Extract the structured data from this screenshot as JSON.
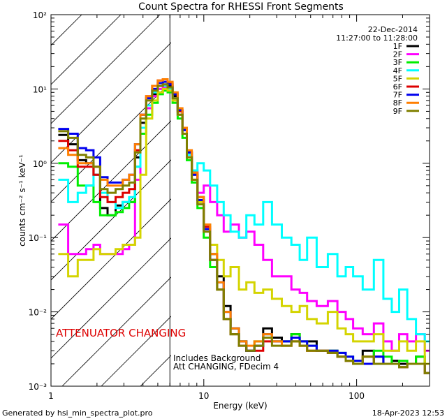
{
  "chart_data": {
    "type": "line",
    "title": "Count Spectra for RHESSI Front Segments",
    "xlabel": "Energy (keV)",
    "ylabel": "counts cm⁻² s⁻¹ keV⁻¹",
    "xscale": "log",
    "yscale": "log",
    "xlim": [
      1,
      300
    ],
    "ylim": [
      0.001,
      100
    ],
    "x_ticks": [
      {
        "value": 1,
        "label": "1"
      },
      {
        "value": 10,
        "label": "10"
      },
      {
        "value": 100,
        "label": "100"
      }
    ],
    "y_ticks": [
      {
        "value": 100,
        "label": "10²"
      },
      {
        "value": 10,
        "label": "10¹"
      },
      {
        "value": 1,
        "label": "10⁰"
      },
      {
        "value": 0.1,
        "label": "10⁻¹"
      },
      {
        "value": 0.01,
        "label": "10⁻²"
      },
      {
        "value": 0.001,
        "label": "10⁻³"
      }
    ],
    "date": "22-Dec-2014",
    "time_range": "11:27:00 to 11:28:00",
    "attenuator_label": "ATTENUATOR CHANGING",
    "attenuator_energy_kev": 6,
    "notes": [
      "Includes Background",
      "Att CHANGING, FDecim 4"
    ],
    "series": [
      {
        "name": "1F",
        "color": "#000000",
        "x": [
          1.2,
          1.4,
          1.6,
          1.8,
          2.0,
          2.2,
          2.5,
          2.8,
          3.1,
          3.4,
          3.7,
          4.0,
          4.4,
          4.8,
          5.2,
          5.6,
          6.0,
          6.5,
          7.0,
          7.5,
          8.0,
          8.7,
          9.5,
          10.5,
          11.5,
          13,
          14,
          16,
          18,
          20,
          23,
          26,
          30,
          35,
          40,
          45,
          50,
          60,
          70,
          80,
          90,
          100,
          120,
          140,
          160,
          180,
          200,
          230,
          260,
          300
        ],
        "values": [
          2.4,
          1.8,
          1.1,
          1.0,
          0.7,
          0.25,
          0.2,
          0.27,
          0.3,
          0.3,
          1.2,
          3.5,
          6.0,
          8.5,
          11.0,
          11.5,
          11.0,
          8.0,
          5.0,
          2.8,
          1.4,
          0.75,
          0.35,
          0.15,
          0.06,
          0.03,
          0.012,
          0.006,
          0.004,
          0.003,
          0.0035,
          0.006,
          0.0045,
          0.004,
          0.005,
          0.004,
          0.004,
          0.003,
          0.003,
          0.0025,
          0.0022,
          0.002,
          0.003,
          0.0025,
          0.002,
          0.0022,
          0.002,
          0.002,
          0.0025,
          0.0015
        ]
      },
      {
        "name": "2F",
        "color": "#ff00ff",
        "x": [
          1.2,
          1.4,
          1.6,
          1.8,
          2.0,
          2.2,
          2.5,
          2.8,
          3.1,
          3.4,
          3.7,
          4.0,
          4.4,
          4.8,
          5.2,
          5.6,
          6.0,
          6.5,
          7.0,
          7.5,
          8.0,
          8.7,
          9.5,
          10.5,
          11.5,
          13,
          14,
          16,
          18,
          20,
          23,
          26,
          30,
          35,
          40,
          45,
          50,
          60,
          70,
          80,
          90,
          100,
          120,
          140,
          160,
          180,
          200,
          230,
          260,
          300
        ],
        "values": [
          0.15,
          0.06,
          0.06,
          0.07,
          0.08,
          0.06,
          0.06,
          0.06,
          0.07,
          0.08,
          0.6,
          3.0,
          5.5,
          8.0,
          10.0,
          10.5,
          10.0,
          7.5,
          4.5,
          2.5,
          1.2,
          0.8,
          0.4,
          0.5,
          0.3,
          0.2,
          0.12,
          0.15,
          0.1,
          0.12,
          0.08,
          0.05,
          0.03,
          0.03,
          0.02,
          0.018,
          0.014,
          0.012,
          0.014,
          0.01,
          0.008,
          0.006,
          0.005,
          0.007,
          0.004,
          0.003,
          0.005,
          0.004,
          0.005,
          0.003
        ]
      },
      {
        "name": "3F",
        "color": "#00ee00",
        "x": [
          1.2,
          1.4,
          1.6,
          1.8,
          2.0,
          2.2,
          2.5,
          2.8,
          3.1,
          3.4,
          3.7,
          4.0,
          4.4,
          4.8,
          5.2,
          5.6,
          6.0,
          6.5,
          7.0,
          7.5,
          8.0,
          8.7,
          9.5,
          10.5,
          11.5,
          13,
          14,
          16,
          18,
          20,
          23,
          26,
          30,
          35,
          40,
          45,
          50,
          60,
          70,
          80,
          90,
          100,
          120,
          140,
          160,
          180,
          200,
          230,
          260,
          300
        ],
        "values": [
          1.0,
          0.9,
          0.5,
          0.5,
          0.3,
          0.2,
          0.2,
          0.22,
          0.25,
          0.3,
          0.9,
          2.5,
          4.5,
          6.5,
          8.5,
          9.5,
          9.0,
          6.5,
          4.0,
          2.2,
          1.1,
          0.55,
          0.25,
          0.1,
          0.04,
          0.02,
          0.008,
          0.005,
          0.004,
          0.003,
          0.004,
          0.005,
          0.004,
          0.004,
          0.005,
          0.004,
          0.0035,
          0.003,
          0.003,
          0.0028,
          0.0025,
          0.0022,
          0.002,
          0.003,
          0.0025,
          0.002,
          0.0022,
          0.002,
          0.0025,
          0.002
        ]
      },
      {
        "name": "4F",
        "color": "#00ffff",
        "x": [
          1.2,
          1.4,
          1.6,
          1.8,
          2.0,
          2.2,
          2.5,
          2.8,
          3.1,
          3.4,
          3.7,
          4.0,
          4.4,
          4.8,
          5.2,
          5.6,
          6.0,
          6.5,
          7.0,
          7.5,
          8.0,
          8.7,
          9.5,
          10.5,
          11.5,
          13,
          14,
          16,
          18,
          20,
          23,
          26,
          30,
          35,
          40,
          45,
          50,
          60,
          70,
          80,
          90,
          100,
          120,
          140,
          160,
          180,
          200,
          230,
          260,
          300
        ],
        "values": [
          0.6,
          0.3,
          0.4,
          0.5,
          0.7,
          0.4,
          0.3,
          0.25,
          0.3,
          0.35,
          0.9,
          3.0,
          6.0,
          9.0,
          11.0,
          11.0,
          10.0,
          7.5,
          4.5,
          2.5,
          1.3,
          0.8,
          1.0,
          0.8,
          0.5,
          0.3,
          0.2,
          0.12,
          0.1,
          0.2,
          0.15,
          0.3,
          0.15,
          0.1,
          0.08,
          0.05,
          0.1,
          0.04,
          0.06,
          0.03,
          0.04,
          0.03,
          0.02,
          0.05,
          0.015,
          0.01,
          0.02,
          0.008,
          0.005,
          0.004
        ]
      },
      {
        "name": "5F",
        "color": "#d4d400",
        "x": [
          1.2,
          1.4,
          1.6,
          1.8,
          2.0,
          2.2,
          2.5,
          2.8,
          3.1,
          3.4,
          3.7,
          4.0,
          4.4,
          4.8,
          5.2,
          5.6,
          6.0,
          6.5,
          7.0,
          7.5,
          8.0,
          8.7,
          9.5,
          10.5,
          11.5,
          13,
          14,
          16,
          18,
          20,
          23,
          26,
          30,
          35,
          40,
          45,
          50,
          60,
          70,
          80,
          90,
          100,
          120,
          140,
          160,
          180,
          200,
          230,
          260,
          300
        ],
        "values": [
          0.06,
          0.03,
          0.05,
          0.05,
          0.07,
          0.06,
          0.06,
          0.07,
          0.08,
          0.08,
          0.1,
          0.7,
          4.0,
          7.0,
          9.0,
          10.0,
          9.5,
          7.0,
          4.5,
          2.5,
          1.2,
          0.6,
          0.3,
          0.15,
          0.08,
          0.05,
          0.03,
          0.04,
          0.02,
          0.025,
          0.018,
          0.02,
          0.015,
          0.012,
          0.01,
          0.012,
          0.008,
          0.007,
          0.01,
          0.006,
          0.005,
          0.004,
          0.004,
          0.005,
          0.003,
          0.003,
          0.004,
          0.003,
          0.004,
          0.002
        ]
      },
      {
        "name": "6F",
        "color": "#dd0000",
        "x": [
          1.2,
          1.4,
          1.6,
          1.8,
          2.0,
          2.2,
          2.5,
          2.8,
          3.1,
          3.4,
          3.7,
          4.0,
          4.4,
          4.8,
          5.2,
          5.6,
          6.0,
          6.5,
          7.0,
          7.5,
          8.0,
          8.7,
          9.5,
          10.5,
          11.5,
          13,
          14,
          16,
          18,
          20,
          23,
          26,
          30,
          35,
          40,
          45,
          50,
          60,
          70,
          80,
          90,
          100,
          120,
          140,
          160,
          180,
          200,
          230,
          260,
          300
        ],
        "values": [
          2.0,
          1.5,
          0.9,
          0.9,
          0.7,
          0.35,
          0.3,
          0.35,
          0.4,
          0.45,
          1.5,
          4.5,
          8.0,
          11.0,
          13.0,
          13.5,
          12.0,
          8.5,
          5.0,
          2.8,
          1.4,
          0.7,
          0.32,
          0.14,
          0.05,
          0.02,
          0.008,
          0.005,
          0.0035,
          0.003,
          0.003,
          0.004,
          0.004,
          0.0035,
          0.004,
          0.0035,
          0.003,
          0.003,
          0.0028,
          0.0025,
          0.0022,
          0.002,
          0.0025,
          0.002,
          0.002,
          0.002,
          0.0018,
          0.002,
          0.002,
          0.0015
        ]
      },
      {
        "name": "7F",
        "color": "#0000ee",
        "x": [
          1.2,
          1.4,
          1.6,
          1.8,
          2.0,
          2.2,
          2.5,
          2.8,
          3.1,
          3.4,
          3.7,
          4.0,
          4.4,
          4.8,
          5.2,
          5.6,
          6.0,
          6.5,
          7.0,
          7.5,
          8.0,
          8.7,
          9.5,
          10.5,
          11.5,
          13,
          14,
          16,
          18,
          20,
          23,
          26,
          30,
          35,
          40,
          45,
          50,
          60,
          70,
          80,
          90,
          100,
          120,
          140,
          160,
          180,
          200,
          230,
          260,
          300
        ],
        "values": [
          2.9,
          2.5,
          1.6,
          1.5,
          1.2,
          0.65,
          0.55,
          0.55,
          0.6,
          0.7,
          1.8,
          4.5,
          7.5,
          10.0,
          12.0,
          12.5,
          11.5,
          8.5,
          5.2,
          2.8,
          1.4,
          0.7,
          0.32,
          0.13,
          0.05,
          0.025,
          0.01,
          0.006,
          0.004,
          0.003,
          0.0035,
          0.005,
          0.004,
          0.004,
          0.0045,
          0.004,
          0.0035,
          0.003,
          0.003,
          0.0028,
          0.0025,
          0.0022,
          0.002,
          0.0025,
          0.002,
          0.002,
          0.0018,
          0.002,
          0.002,
          0.0015
        ]
      },
      {
        "name": "8F",
        "color": "#ff7f00",
        "x": [
          1.2,
          1.4,
          1.6,
          1.8,
          2.0,
          2.2,
          2.5,
          2.8,
          3.1,
          3.4,
          3.7,
          4.0,
          4.4,
          4.8,
          5.2,
          5.6,
          6.0,
          6.5,
          7.0,
          7.5,
          8.0,
          8.7,
          9.5,
          10.5,
          11.5,
          13,
          14,
          16,
          18,
          20,
          23,
          26,
          30,
          35,
          40,
          45,
          50,
          60,
          70,
          80,
          90,
          100,
          120,
          140,
          160,
          180,
          200,
          230,
          260,
          300
        ],
        "values": [
          1.6,
          1.3,
          1.0,
          1.0,
          0.9,
          0.6,
          0.5,
          0.5,
          0.6,
          0.7,
          1.8,
          4.5,
          8.0,
          11.0,
          13.0,
          13.5,
          12.5,
          9.0,
          5.5,
          3.0,
          1.5,
          0.75,
          0.35,
          0.15,
          0.06,
          0.025,
          0.01,
          0.006,
          0.004,
          0.0035,
          0.004,
          0.005,
          0.004,
          0.0035,
          0.004,
          0.0035,
          0.003,
          0.003,
          0.0028,
          0.0025,
          0.0022,
          0.002,
          0.0025,
          0.002,
          0.002,
          0.002,
          0.0018,
          0.002,
          0.002,
          0.0015
        ]
      },
      {
        "name": "9F",
        "color": "#808000",
        "x": [
          1.2,
          1.4,
          1.6,
          1.8,
          2.0,
          2.2,
          2.5,
          2.8,
          3.1,
          3.4,
          3.7,
          4.0,
          4.4,
          4.8,
          5.2,
          5.6,
          6.0,
          6.5,
          7.0,
          7.5,
          8.0,
          8.7,
          9.5,
          10.5,
          11.5,
          13,
          14,
          16,
          18,
          20,
          23,
          26,
          30,
          35,
          40,
          45,
          50,
          60,
          70,
          80,
          90,
          100,
          120,
          140,
          160,
          180,
          200,
          230,
          260,
          300
        ],
        "values": [
          2.7,
          2.2,
          1.3,
          1.2,
          0.9,
          0.45,
          0.4,
          0.45,
          0.5,
          0.55,
          1.4,
          4.0,
          7.0,
          9.5,
          11.0,
          11.5,
          10.5,
          7.5,
          4.5,
          2.5,
          1.2,
          0.6,
          0.28,
          0.12,
          0.05,
          0.02,
          0.008,
          0.005,
          0.0035,
          0.003,
          0.0035,
          0.0045,
          0.0035,
          0.0035,
          0.004,
          0.0035,
          0.003,
          0.003,
          0.0028,
          0.0025,
          0.0022,
          0.002,
          0.0025,
          0.002,
          0.002,
          0.002,
          0.0018,
          0.002,
          0.002,
          0.0015
        ]
      }
    ]
  },
  "footer": {
    "generated_by": "Generated by hsi_min_spectra_plot.pro",
    "timestamp": "18-Apr-2023 12:53"
  }
}
